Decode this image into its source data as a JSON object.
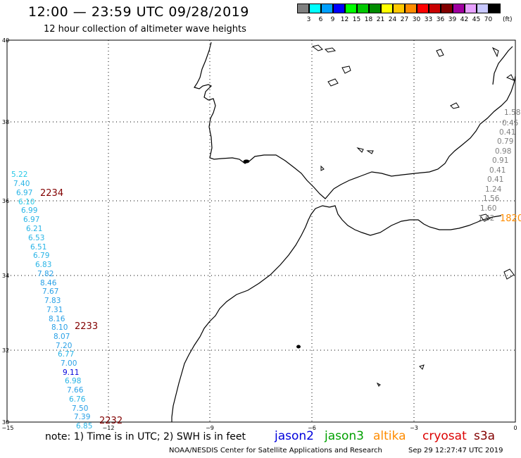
{
  "header": {
    "title": "12:00 — 23:59 UTC 09/28/2019",
    "subtitle": "12 hour collection of altimeter wave heights"
  },
  "legend": {
    "unit": "(ft)",
    "bins": [
      {
        "color": "#808080",
        "label": "3"
      },
      {
        "color": "#00ffff",
        "label": "6"
      },
      {
        "color": "#00a0ff",
        "label": "9"
      },
      {
        "color": "#0000ff",
        "label": "12"
      },
      {
        "color": "#00ff00",
        "label": "15"
      },
      {
        "color": "#00c800",
        "label": "18"
      },
      {
        "color": "#008c00",
        "label": "21"
      },
      {
        "color": "#ffff00",
        "label": "24"
      },
      {
        "color": "#ffc800",
        "label": "27"
      },
      {
        "color": "#ff8c00",
        "label": "30"
      },
      {
        "color": "#ff0000",
        "label": "33"
      },
      {
        "color": "#c80000",
        "label": "36"
      },
      {
        "color": "#820000",
        "label": "39"
      },
      {
        "color": "#a000a0",
        "label": "42"
      },
      {
        "color": "#e6a0ff",
        "label": "45"
      },
      {
        "color": "#c8c8ff",
        "label": "70"
      },
      {
        "color": "#000000",
        "label": ""
      }
    ]
  },
  "axes": {
    "lat_labels": [
      "40",
      "38",
      "36",
      "34",
      "32",
      "30"
    ],
    "lon_labels": [
      "−15",
      "−12",
      "−9",
      "−6",
      "−3",
      "0"
    ]
  },
  "tracks": [
    {
      "name": "western-track",
      "points": [
        {
          "value": "5.22",
          "color": "#28c8e6"
        },
        {
          "value": "7.40",
          "color": "#28b4e6"
        },
        {
          "value": "6.97",
          "color": "#28b4e6"
        },
        {
          "value": "6.10",
          "color": "#28c8e6"
        },
        {
          "value": "6.99",
          "color": "#28b4e6"
        },
        {
          "value": "6.97",
          "color": "#28b4e6"
        },
        {
          "value": "6.21",
          "color": "#28b4e6"
        },
        {
          "value": "6.53",
          "color": "#28b4e6"
        },
        {
          "value": "6.51",
          "color": "#28b4e6"
        },
        {
          "value": "6.79",
          "color": "#28b4e6"
        },
        {
          "value": "6.83",
          "color": "#28b4e6"
        },
        {
          "value": "7.82",
          "color": "#28a0e6"
        },
        {
          "value": "8.46",
          "color": "#28a0e6"
        },
        {
          "value": "7.67",
          "color": "#28a0e6"
        },
        {
          "value": "7.83",
          "color": "#28a0e6"
        },
        {
          "value": "7.31",
          "color": "#28a0e6"
        },
        {
          "value": "8.16",
          "color": "#28a0e6"
        },
        {
          "value": "8.10",
          "color": "#28a0e6"
        },
        {
          "value": "8.07",
          "color": "#28a0e6"
        },
        {
          "value": "7.20",
          "color": "#28a0e6"
        },
        {
          "value": "6.77",
          "color": "#28b4e6"
        },
        {
          "value": "7.00",
          "color": "#28a0e6"
        },
        {
          "value": "9.11",
          "color": "#0000dc"
        },
        {
          "value": "6.98",
          "color": "#28b4e6"
        },
        {
          "value": "7.66",
          "color": "#28a0e6"
        },
        {
          "value": "6.76",
          "color": "#28b4e6"
        },
        {
          "value": "7.50",
          "color": "#28a0e6"
        },
        {
          "value": "7.39",
          "color": "#28a0e6"
        },
        {
          "value": "6.85",
          "color": "#28b4e6"
        }
      ],
      "time_labels": [
        "2234",
        "2233",
        "2232"
      ],
      "time_color": "#820000"
    },
    {
      "name": "eastern-track",
      "points": [
        {
          "value": "1.58",
          "color": "#808080"
        },
        {
          "value": "0.45",
          "color": "#808080"
        },
        {
          "value": "0.41",
          "color": "#808080"
        },
        {
          "value": "0.79",
          "color": "#808080"
        },
        {
          "value": "0.98",
          "color": "#808080"
        },
        {
          "value": "0.91",
          "color": "#808080"
        },
        {
          "value": "0.41",
          "color": "#808080"
        },
        {
          "value": "0.41",
          "color": "#808080"
        },
        {
          "value": "1.24",
          "color": "#808080"
        },
        {
          "value": "1.56",
          "color": "#808080"
        },
        {
          "value": "1.60",
          "color": "#808080"
        },
        {
          "value": "1.62",
          "color": "#808080"
        }
      ],
      "time_labels": [
        "1820"
      ],
      "time_color": "#ff8c00"
    }
  ],
  "footer": {
    "note": "note:  1) Time is in UTC;  2) SWH is in feet",
    "satellites": [
      {
        "label": "jason2",
        "color": "#0000dc"
      },
      {
        "label": "jason3",
        "color": "#00a000"
      },
      {
        "label": "altika",
        "color": "#ff8c00"
      },
      {
        "label": "cryosat",
        "color": "#dc0000"
      },
      {
        "label": "s3a",
        "color": "#820000"
      }
    ],
    "credit": "NOAA/NESDIS Center for Satellite Applications and Research",
    "timestamp": "Sep 29 12:27:47 UTC 2019"
  }
}
